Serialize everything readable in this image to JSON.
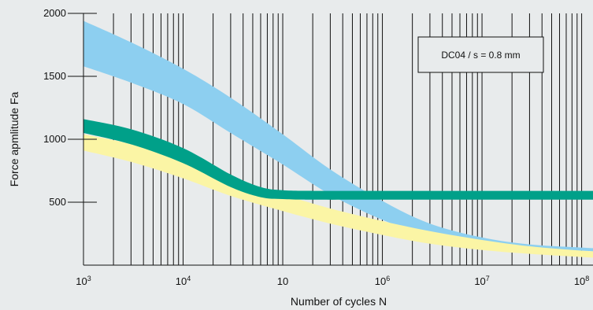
{
  "chart_data": {
    "type": "area",
    "title": "",
    "xlabel": "Number of cycles N",
    "ylabel": "Force apmlitude Fa",
    "x_scale": "log",
    "xlim": [
      1000,
      130000000
    ],
    "ylim": [
      0,
      2000
    ],
    "x_ticks": [
      {
        "value": 1000,
        "base": "10",
        "exp": "3"
      },
      {
        "value": 10000,
        "base": "10",
        "exp": "4"
      },
      {
        "value": 100000,
        "base": "10",
        "exp": ""
      },
      {
        "value": 1000000,
        "base": "10",
        "exp": "6"
      },
      {
        "value": 10000000,
        "base": "10",
        "exp": "7"
      },
      {
        "value": 100000000,
        "base": "10",
        "exp": "8"
      }
    ],
    "y_ticks": [
      {
        "value": 500,
        "label": "500"
      },
      {
        "value": 1000,
        "label": "1000"
      },
      {
        "value": 1500,
        "label": "1500"
      },
      {
        "value": 2000,
        "label": "2000"
      }
    ],
    "grid": "vertical lines at 1-9 x each decade",
    "annotation": "DC04 / s = 0.8 mm",
    "series": [
      {
        "color": "#8dcff0",
        "x": [
          1000,
          3000,
          10000,
          30000,
          100000,
          300000,
          1000000,
          3000000,
          10000000,
          30000000,
          100000000,
          130000000
        ],
        "upper": [
          1940,
          1770,
          1560,
          1330,
          1040,
          760,
          510,
          330,
          220,
          165,
          140,
          135
        ],
        "lower": [
          1580,
          1450,
          1280,
          1050,
          800,
          560,
          360,
          230,
          160,
          130,
          115,
          110
        ]
      },
      {
        "color": "#fbf5a5",
        "x": [
          1000,
          3000,
          10000,
          30000,
          100000,
          300000,
          1000000,
          3000000,
          10000000,
          30000000,
          100000000,
          130000000
        ],
        "upper": [
          1040,
          960,
          830,
          680,
          560,
          450,
          350,
          270,
          200,
          150,
          115,
          110
        ],
        "lower": [
          910,
          820,
          690,
          550,
          430,
          330,
          240,
          170,
          120,
          90,
          65,
          60
        ]
      },
      {
        "color": "#00a089",
        "x": [
          1000,
          3000,
          10000,
          30000,
          60000,
          100000,
          200000,
          1000000,
          10000000,
          130000000
        ],
        "upper": [
          1160,
          1080,
          930,
          720,
          620,
          595,
          590,
          590,
          590,
          590
        ],
        "lower": [
          1050,
          960,
          810,
          620,
          540,
          525,
          520,
          520,
          520,
          520
        ]
      }
    ]
  }
}
